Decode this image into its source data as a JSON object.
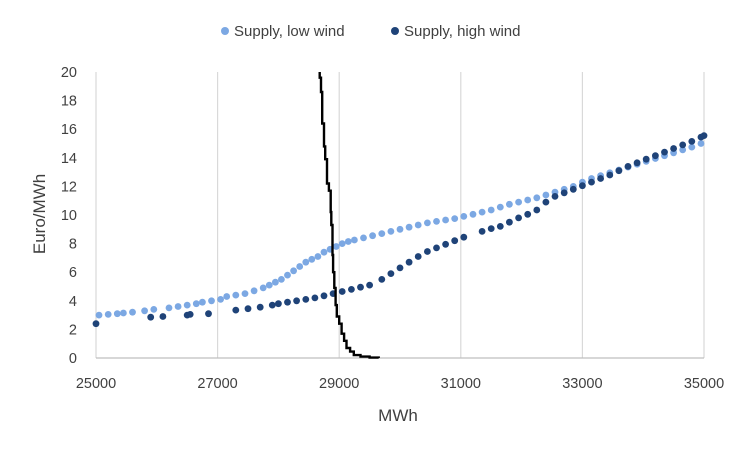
{
  "chart_data": {
    "type": "scatter",
    "xlabel": "MWh",
    "ylabel": "Euro/MWh",
    "xlim": [
      25000,
      35000
    ],
    "ylim": [
      0,
      20
    ],
    "x_ticks": [
      25000,
      27000,
      29000,
      31000,
      33000,
      35000
    ],
    "y_ticks": [
      0,
      2,
      4,
      6,
      8,
      10,
      12,
      14,
      16,
      18,
      20
    ],
    "x_gridlines": [
      25000,
      27000,
      29000,
      31000,
      33000,
      35000
    ],
    "legend_position": "top",
    "series": [
      {
        "name": "Supply, low wind",
        "kind": "scatter",
        "color": "#7CA8E3",
        "points": [
          [
            25050,
            3.0
          ],
          [
            25200,
            3.05
          ],
          [
            25350,
            3.1
          ],
          [
            25450,
            3.15
          ],
          [
            25600,
            3.2
          ],
          [
            25800,
            3.3
          ],
          [
            25950,
            3.4
          ],
          [
            26200,
            3.5
          ],
          [
            26350,
            3.6
          ],
          [
            26500,
            3.7
          ],
          [
            26650,
            3.8
          ],
          [
            26750,
            3.9
          ],
          [
            26900,
            4.0
          ],
          [
            27050,
            4.1
          ],
          [
            27150,
            4.3
          ],
          [
            27300,
            4.4
          ],
          [
            27450,
            4.5
          ],
          [
            27600,
            4.7
          ],
          [
            27750,
            4.9
          ],
          [
            27850,
            5.1
          ],
          [
            27950,
            5.3
          ],
          [
            28050,
            5.5
          ],
          [
            28150,
            5.8
          ],
          [
            28250,
            6.1
          ],
          [
            28350,
            6.4
          ],
          [
            28450,
            6.7
          ],
          [
            28550,
            6.9
          ],
          [
            28650,
            7.1
          ],
          [
            28750,
            7.4
          ],
          [
            28850,
            7.6
          ],
          [
            28950,
            7.8
          ],
          [
            29050,
            8.0
          ],
          [
            29150,
            8.15
          ],
          [
            29250,
            8.25
          ],
          [
            29400,
            8.4
          ],
          [
            29550,
            8.55
          ],
          [
            29700,
            8.7
          ],
          [
            29850,
            8.85
          ],
          [
            30000,
            9.0
          ],
          [
            30150,
            9.15
          ],
          [
            30300,
            9.3
          ],
          [
            30450,
            9.45
          ],
          [
            30600,
            9.55
          ],
          [
            30750,
            9.65
          ],
          [
            30900,
            9.75
          ],
          [
            31050,
            9.9
          ],
          [
            31200,
            10.05
          ],
          [
            31350,
            10.2
          ],
          [
            31500,
            10.35
          ],
          [
            31650,
            10.55
          ],
          [
            31800,
            10.75
          ],
          [
            31950,
            10.9
          ],
          [
            32100,
            11.05
          ],
          [
            32250,
            11.2
          ],
          [
            32400,
            11.4
          ],
          [
            32550,
            11.6
          ],
          [
            32700,
            11.8
          ],
          [
            32850,
            12.0
          ],
          [
            33000,
            12.3
          ],
          [
            33150,
            12.55
          ],
          [
            33300,
            12.75
          ],
          [
            33450,
            12.95
          ],
          [
            33600,
            13.15
          ],
          [
            33750,
            13.35
          ],
          [
            33900,
            13.55
          ],
          [
            34050,
            13.75
          ],
          [
            34200,
            13.95
          ],
          [
            34350,
            14.15
          ],
          [
            34500,
            14.35
          ],
          [
            34650,
            14.55
          ],
          [
            34800,
            14.75
          ],
          [
            34950,
            15.0
          ]
        ]
      },
      {
        "name": "Supply, high wind",
        "kind": "scatter",
        "color": "#1F4378",
        "points": [
          [
            25000,
            2.4
          ],
          [
            25900,
            2.85
          ],
          [
            26100,
            2.9
          ],
          [
            26500,
            3.0
          ],
          [
            26550,
            3.05
          ],
          [
            26850,
            3.1
          ],
          [
            27300,
            3.35
          ],
          [
            27500,
            3.45
          ],
          [
            27700,
            3.55
          ],
          [
            27900,
            3.7
          ],
          [
            28000,
            3.8
          ],
          [
            28150,
            3.9
          ],
          [
            28300,
            4.0
          ],
          [
            28450,
            4.1
          ],
          [
            28600,
            4.2
          ],
          [
            28750,
            4.35
          ],
          [
            28900,
            4.5
          ],
          [
            29050,
            4.65
          ],
          [
            29200,
            4.8
          ],
          [
            29350,
            4.95
          ],
          [
            29500,
            5.1
          ],
          [
            29700,
            5.5
          ],
          [
            29850,
            5.9
          ],
          [
            30000,
            6.3
          ],
          [
            30150,
            6.7
          ],
          [
            30300,
            7.1
          ],
          [
            30450,
            7.45
          ],
          [
            30600,
            7.7
          ],
          [
            30750,
            7.95
          ],
          [
            30900,
            8.2
          ],
          [
            31050,
            8.45
          ],
          [
            31350,
            8.85
          ],
          [
            31500,
            9.05
          ],
          [
            31650,
            9.2
          ],
          [
            31800,
            9.5
          ],
          [
            31950,
            9.8
          ],
          [
            32100,
            10.05
          ],
          [
            32250,
            10.35
          ],
          [
            32400,
            10.9
          ],
          [
            32550,
            11.3
          ],
          [
            32700,
            11.55
          ],
          [
            32850,
            11.8
          ],
          [
            33000,
            12.05
          ],
          [
            33150,
            12.3
          ],
          [
            33300,
            12.55
          ],
          [
            33450,
            12.8
          ],
          [
            33600,
            13.1
          ],
          [
            33750,
            13.4
          ],
          [
            33900,
            13.65
          ],
          [
            34050,
            13.9
          ],
          [
            34200,
            14.15
          ],
          [
            34350,
            14.4
          ],
          [
            34500,
            14.65
          ],
          [
            34650,
            14.9
          ],
          [
            34800,
            15.15
          ],
          [
            34950,
            15.45
          ],
          [
            35000,
            15.55
          ]
        ]
      },
      {
        "kind": "line",
        "color": "#000000",
        "step": true,
        "points": [
          [
            28680,
            20.0
          ],
          [
            28680,
            19.6
          ],
          [
            28700,
            19.6
          ],
          [
            28700,
            18.6
          ],
          [
            28720,
            18.6
          ],
          [
            28720,
            16.4
          ],
          [
            28750,
            16.4
          ],
          [
            28750,
            14.8
          ],
          [
            28770,
            14.8
          ],
          [
            28770,
            13.9
          ],
          [
            28800,
            13.9
          ],
          [
            28800,
            12.2
          ],
          [
            28830,
            12.2
          ],
          [
            28830,
            11.7
          ],
          [
            28860,
            11.7
          ],
          [
            28860,
            10.2
          ],
          [
            28870,
            10.2
          ],
          [
            28870,
            9.3
          ],
          [
            28890,
            9.3
          ],
          [
            28890,
            7.2
          ],
          [
            28900,
            7.2
          ],
          [
            28900,
            6.0
          ],
          [
            28920,
            6.0
          ],
          [
            28920,
            4.9
          ],
          [
            28940,
            4.9
          ],
          [
            28940,
            3.7
          ],
          [
            28960,
            3.7
          ],
          [
            28960,
            2.9
          ],
          [
            29000,
            2.9
          ],
          [
            29000,
            2.4
          ],
          [
            29040,
            2.4
          ],
          [
            29040,
            1.7
          ],
          [
            29080,
            1.7
          ],
          [
            29080,
            1.2
          ],
          [
            29120,
            1.2
          ],
          [
            29120,
            0.7
          ],
          [
            29180,
            0.7
          ],
          [
            29180,
            0.45
          ],
          [
            29240,
            0.45
          ],
          [
            29240,
            0.2
          ],
          [
            29350,
            0.2
          ],
          [
            29350,
            0.1
          ],
          [
            29500,
            0.1
          ],
          [
            29500,
            0.03
          ],
          [
            29650,
            0.03
          ],
          [
            29650,
            0.0
          ]
        ]
      }
    ]
  }
}
